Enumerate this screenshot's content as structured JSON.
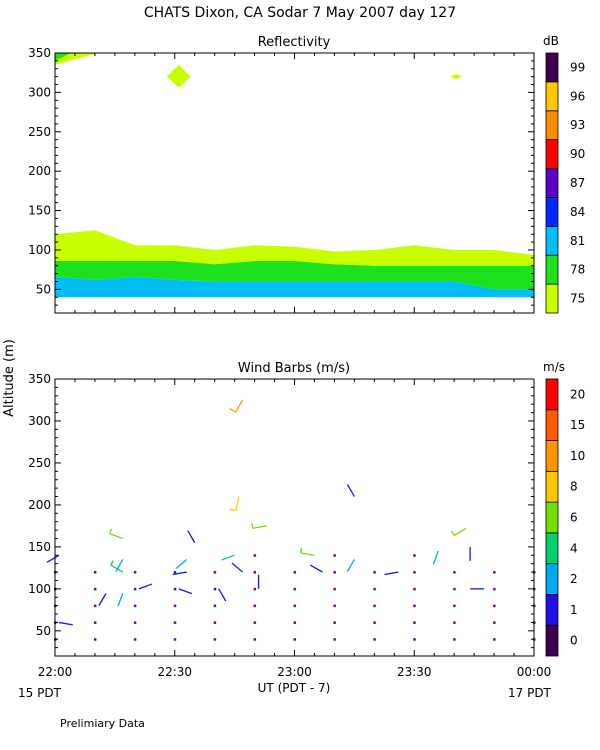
{
  "title": "CHATS Dixon, CA  Sodar    7 May 2007  day 127",
  "ylabel": "Altitude (m)",
  "footer": "Prelimiary Data",
  "chart_data": [
    {
      "type": "area",
      "title": "Reflectivity",
      "ylim": [
        20,
        350
      ],
      "yticks": [
        50,
        100,
        150,
        200,
        250,
        300,
        350
      ],
      "xlim_minutes": [
        0,
        120
      ],
      "x": [
        0,
        10,
        20,
        30,
        40,
        50,
        60,
        70,
        80,
        90,
        100,
        110,
        120
      ],
      "series": [
        {
          "level": "81",
          "color": "#00bff7",
          "lower": [
            40,
            40,
            40,
            40,
            40,
            40,
            40,
            40,
            40,
            40,
            40,
            40,
            40
          ],
          "upper": [
            66,
            62,
            66,
            62,
            60,
            60,
            60,
            60,
            60,
            60,
            60,
            50,
            50
          ]
        },
        {
          "level": "78",
          "color": "#1ee11e",
          "lower": [
            66,
            62,
            66,
            62,
            60,
            60,
            60,
            60,
            60,
            60,
            60,
            50,
            50
          ],
          "upper": [
            86,
            86,
            86,
            86,
            82,
            86,
            86,
            82,
            80,
            80,
            80,
            80,
            80
          ]
        },
        {
          "level": "75",
          "color": "#c8ff00",
          "lower": [
            86,
            86,
            86,
            86,
            82,
            86,
            86,
            82,
            80,
            80,
            80,
            80,
            80
          ],
          "upper": [
            120,
            125,
            106,
            106,
            100,
            106,
            104,
            98,
            100,
            106,
            100,
            100,
            94
          ]
        }
      ],
      "patches": [
        {
          "level": "75",
          "color": "#c8ff00",
          "points": [
            [
              0,
              335
            ],
            [
              11,
              350
            ],
            [
              0,
              350
            ]
          ]
        },
        {
          "level": "75",
          "color": "#c8ff00",
          "points": [
            [
              28,
              320
            ],
            [
              31,
              335
            ],
            [
              34,
              320
            ],
            [
              31,
              306
            ]
          ]
        },
        {
          "level": "75",
          "color": "#c8ff00",
          "points": [
            [
              99,
              320
            ],
            [
              100.5,
              323
            ],
            [
              102,
              320
            ],
            [
              100.5,
              317
            ]
          ]
        },
        {
          "level": "78",
          "color": "#1ee11e",
          "points": [
            [
              0,
              340
            ],
            [
              4,
              350
            ],
            [
              0,
              350
            ]
          ]
        }
      ],
      "colorbar": {
        "unit": "dB",
        "labels": [
          "75",
          "78",
          "81",
          "84",
          "87",
          "90",
          "93",
          "96",
          "99"
        ],
        "colors": [
          "#c8ff00",
          "#1ee11e",
          "#00bff7",
          "#0029ff",
          "#5a00c8",
          "#ff0000",
          "#ff8c00",
          "#ffc800",
          "#3c0050"
        ]
      }
    },
    {
      "type": "scatter",
      "title": "Wind Barbs (m/s)",
      "ylim": [
        20,
        350
      ],
      "yticks": [
        50,
        100,
        150,
        200,
        250,
        300,
        350
      ],
      "xlim_minutes": [
        0,
        120
      ],
      "xticks": [
        {
          "m": 0,
          "label": "22:00"
        },
        {
          "m": 30,
          "label": "22:30"
        },
        {
          "m": 60,
          "label": "23:00"
        },
        {
          "m": 90,
          "label": "23:30"
        },
        {
          "m": 120,
          "label": "00:00"
        }
      ],
      "xlabel": "UT  (PDT - 7)",
      "start_label": "15 PDT",
      "end_label": "17 PDT",
      "dots": {
        "color": "#7000b0",
        "x": [
          0,
          10,
          20,
          30,
          40,
          50,
          60,
          70,
          80,
          90,
          100,
          110,
          120
        ],
        "alt": [
          40,
          60,
          80,
          100,
          120
        ],
        "extra": [
          [
            50,
            140
          ],
          [
            70,
            140
          ],
          [
            90,
            140
          ]
        ]
      },
      "barbs": [
        {
          "m": 1,
          "alt": 60,
          "speed": 1.5,
          "dir": 100
        },
        {
          "m": 11,
          "alt": 80,
          "speed": 1.5,
          "dir": 30
        },
        {
          "m": 21,
          "alt": 100,
          "speed": 1.5,
          "dir": 70
        },
        {
          "m": 31,
          "alt": 100,
          "speed": 1.5,
          "dir": 110
        },
        {
          "m": 41,
          "alt": 100,
          "speed": 1.5,
          "dir": 150
        },
        {
          "m": 51,
          "alt": 100,
          "speed": 1.5,
          "dir": 0
        },
        {
          "m": 1,
          "alt": 140,
          "speed": 1.5,
          "dir": 240
        },
        {
          "m": 17,
          "alt": 95,
          "speed": 2.5,
          "dir": 200
        },
        {
          "m": 17,
          "alt": 120,
          "speed": 5,
          "dir": 300
        },
        {
          "m": 17,
          "alt": 135,
          "speed": 2.5,
          "dir": 210
        },
        {
          "m": 17,
          "alt": 160,
          "speed": 6,
          "dir": 290
        },
        {
          "m": 33,
          "alt": 120,
          "speed": 1.5,
          "dir": 260
        },
        {
          "m": 33,
          "alt": 135,
          "speed": 2.5,
          "dir": 230
        },
        {
          "m": 35,
          "alt": 155,
          "speed": 1.5,
          "dir": 330
        },
        {
          "m": 47,
          "alt": 120,
          "speed": 1.5,
          "dir": 310
        },
        {
          "m": 45,
          "alt": 140,
          "speed": 4,
          "dir": 250
        },
        {
          "m": 53,
          "alt": 175,
          "speed": 7,
          "dir": 260
        },
        {
          "m": 46,
          "alt": 210,
          "speed": 9,
          "dir": 190
        },
        {
          "m": 47,
          "alt": 325,
          "speed": 11,
          "dir": 210
        },
        {
          "m": 65,
          "alt": 140,
          "speed": 7,
          "dir": 280
        },
        {
          "m": 67,
          "alt": 120,
          "speed": 1.5,
          "dir": 300
        },
        {
          "m": 75,
          "alt": 135,
          "speed": 2.5,
          "dir": 210
        },
        {
          "m": 75,
          "alt": 210,
          "speed": 1.5,
          "dir": 330
        },
        {
          "m": 86,
          "alt": 120,
          "speed": 1.5,
          "dir": 260
        },
        {
          "m": 96,
          "alt": 145,
          "speed": 2.5,
          "dir": 200
        },
        {
          "m": 104,
          "alt": 150,
          "speed": 1.5,
          "dir": 180
        },
        {
          "m": 103,
          "alt": 172,
          "speed": 6,
          "dir": 240
        },
        {
          "m": 104,
          "alt": 100,
          "speed": 1.5,
          "dir": 90
        }
      ],
      "colorbar": {
        "unit": "m/s",
        "labels": [
          "0",
          "1",
          "2",
          "4",
          "6",
          "8",
          "10",
          "15",
          "20"
        ],
        "colors": [
          "#3c0050",
          "#1e10e8",
          "#00aaf0",
          "#00d26e",
          "#70e000",
          "#ffc800",
          "#ff9600",
          "#ff5a00",
          "#ff0000"
        ]
      }
    }
  ]
}
